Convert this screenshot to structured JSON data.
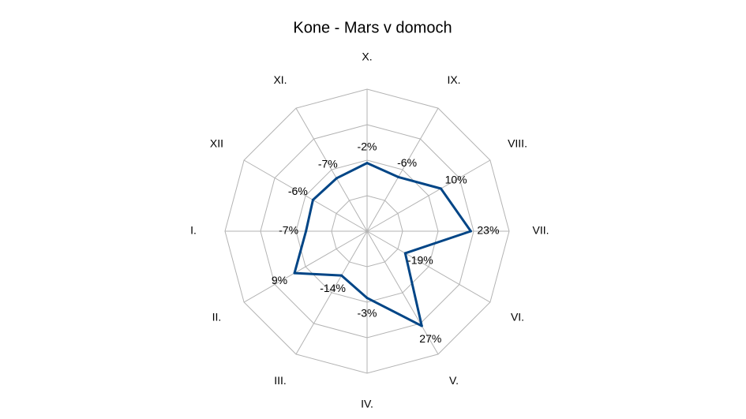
{
  "chart_data": {
    "type": "radar",
    "title": "Kone - Mars v domoch",
    "categories": [
      "X.",
      "IX.",
      "VIII.",
      "VII.",
      "VI.",
      "V.",
      "IV.",
      "III.",
      "II.",
      "I.",
      "XII",
      "XI."
    ],
    "values": [
      -2,
      -6,
      10,
      23,
      -19,
      27,
      -3,
      -14,
      9,
      -7,
      -6,
      -7
    ],
    "value_labels": [
      "-2%",
      "-6%",
      "10%",
      "23%",
      "-19%",
      "27%",
      "-3%",
      "-14%",
      "9%",
      "-7%",
      "-6%",
      "-7%"
    ],
    "color": "#004586",
    "ylim": [
      -50,
      50
    ],
    "yticks": [
      -50,
      -25,
      0,
      25,
      50
    ],
    "grid": true
  }
}
